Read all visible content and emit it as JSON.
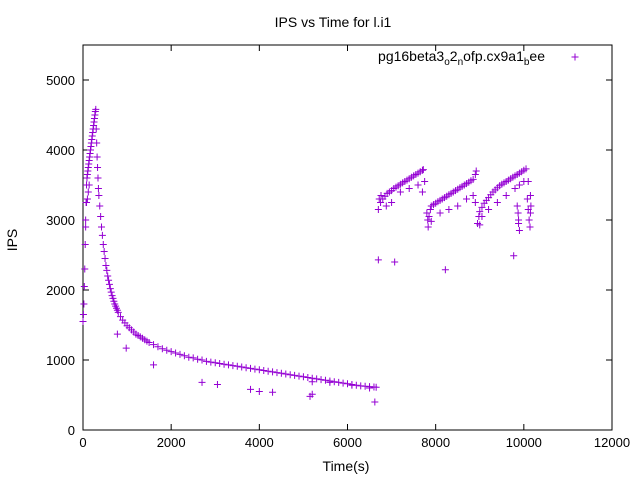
{
  "chart_data": {
    "type": "scatter",
    "title": "IPS vs Time for l.i1",
    "xlabel": "Time(s)",
    "ylabel": "IPS",
    "xlim": [
      0,
      12000
    ],
    "ylim": [
      0,
      5500
    ],
    "xticks": [
      "0",
      "2000",
      "4000",
      "6000",
      "8000",
      "10000",
      "12000"
    ],
    "xtick_values": [
      0,
      2000,
      4000,
      6000,
      8000,
      10000,
      12000
    ],
    "yticks": [
      "0",
      "1000",
      "2000",
      "3000",
      "4000",
      "5000"
    ],
    "ytick_values": [
      0,
      1000,
      2000,
      3000,
      4000,
      5000
    ],
    "grid": false,
    "legend_position": "top-right",
    "marker": "plus",
    "series": [
      {
        "name": "pg16beta3o2nofp.cx9a1bee",
        "name_parts": [
          "pg16beta3",
          "o",
          "2",
          "n",
          "ofp.cx9a1",
          "b",
          "ee"
        ],
        "color": "#9400d3",
        "points": [
          [
            0,
            1550
          ],
          [
            10,
            1650
          ],
          [
            20,
            1800
          ],
          [
            30,
            2050
          ],
          [
            40,
            2300
          ],
          [
            50,
            2650
          ],
          [
            60,
            3000
          ],
          [
            70,
            3250
          ],
          [
            80,
            3500
          ],
          [
            90,
            3600
          ],
          [
            100,
            3650
          ],
          [
            110,
            3700
          ],
          [
            120,
            3750
          ],
          [
            130,
            3800
          ],
          [
            140,
            3850
          ],
          [
            150,
            3900
          ],
          [
            160,
            3950
          ],
          [
            170,
            4000
          ],
          [
            180,
            4050
          ],
          [
            190,
            4100
          ],
          [
            200,
            4150
          ],
          [
            210,
            4200
          ],
          [
            220,
            4250
          ],
          [
            230,
            4300
          ],
          [
            240,
            4350
          ],
          [
            250,
            4400
          ],
          [
            260,
            4450
          ],
          [
            270,
            4500
          ],
          [
            280,
            4550
          ],
          [
            290,
            4580
          ],
          [
            60,
            2900
          ],
          [
            80,
            3250
          ],
          [
            100,
            3300
          ],
          [
            120,
            3400
          ],
          [
            140,
            3500
          ],
          [
            300,
            4300
          ],
          [
            310,
            4100
          ],
          [
            320,
            3900
          ],
          [
            330,
            3750
          ],
          [
            340,
            3600
          ],
          [
            350,
            3450
          ],
          [
            360,
            3350
          ],
          [
            380,
            3200
          ],
          [
            400,
            3050
          ],
          [
            420,
            2900
          ],
          [
            440,
            2780
          ],
          [
            460,
            2650
          ],
          [
            480,
            2550
          ],
          [
            500,
            2450
          ],
          [
            520,
            2350
          ],
          [
            540,
            2280
          ],
          [
            560,
            2200
          ],
          [
            580,
            2140
          ],
          [
            600,
            2080
          ],
          [
            620,
            2020
          ],
          [
            640,
            1970
          ],
          [
            660,
            1920
          ],
          [
            680,
            1880
          ],
          [
            700,
            1840
          ],
          [
            720,
            1800
          ],
          [
            740,
            1770
          ],
          [
            760,
            1740
          ],
          [
            780,
            1710
          ],
          [
            800,
            1680
          ],
          [
            850,
            1620
          ],
          [
            900,
            1570
          ],
          [
            950,
            1530
          ],
          [
            1000,
            1490
          ],
          [
            1050,
            1460
          ],
          [
            1100,
            1430
          ],
          [
            1150,
            1400
          ],
          [
            1200,
            1370
          ],
          [
            1250,
            1350
          ],
          [
            1300,
            1330
          ],
          [
            1350,
            1310
          ],
          [
            1400,
            1290
          ],
          [
            1450,
            1270
          ],
          [
            1500,
            1250
          ],
          [
            1600,
            1220
          ],
          [
            1700,
            1190
          ],
          [
            1800,
            1160
          ],
          [
            1900,
            1140
          ],
          [
            2000,
            1120
          ],
          [
            2100,
            1100
          ],
          [
            2200,
            1080
          ],
          [
            2300,
            1060
          ],
          [
            2400,
            1040
          ],
          [
            2500,
            1030
          ],
          [
            2600,
            1010
          ],
          [
            2700,
            1000
          ],
          [
            2800,
            980
          ],
          [
            2900,
            970
          ],
          [
            3000,
            960
          ],
          [
            3100,
            950
          ],
          [
            3200,
            940
          ],
          [
            3300,
            930
          ],
          [
            3400,
            920
          ],
          [
            3500,
            910
          ],
          [
            3600,
            900
          ],
          [
            3700,
            890
          ],
          [
            3800,
            880
          ],
          [
            3900,
            870
          ],
          [
            4000,
            860
          ],
          [
            4100,
            850
          ],
          [
            4200,
            840
          ],
          [
            4300,
            830
          ],
          [
            4400,
            820
          ],
          [
            4500,
            810
          ],
          [
            4600,
            800
          ],
          [
            4700,
            790
          ],
          [
            4800,
            780
          ],
          [
            4900,
            770
          ],
          [
            5000,
            760
          ],
          [
            5100,
            750
          ],
          [
            5200,
            740
          ],
          [
            5300,
            730
          ],
          [
            5400,
            720
          ],
          [
            5500,
            710
          ],
          [
            5600,
            700
          ],
          [
            5700,
            690
          ],
          [
            5800,
            680
          ],
          [
            5900,
            670
          ],
          [
            6000,
            660
          ],
          [
            6100,
            650
          ],
          [
            6200,
            640
          ],
          [
            6300,
            630
          ],
          [
            6400,
            625
          ],
          [
            6500,
            620
          ],
          [
            6600,
            615
          ],
          [
            6650,
            610
          ],
          [
            5200,
            690
          ],
          [
            5600,
            680
          ],
          [
            6100,
            640
          ],
          [
            6500,
            600
          ],
          [
            780,
            1370
          ],
          [
            980,
            1170
          ],
          [
            1600,
            930
          ],
          [
            2700,
            680
          ],
          [
            3050,
            650
          ],
          [
            3800,
            580
          ],
          [
            4000,
            550
          ],
          [
            4300,
            540
          ],
          [
            5150,
            480
          ],
          [
            5200,
            510
          ],
          [
            6620,
            400
          ],
          [
            6700,
            2430
          ],
          [
            7070,
            2400
          ],
          [
            8220,
            2290
          ],
          [
            9770,
            2490
          ],
          [
            6700,
            3150
          ],
          [
            6750,
            3250
          ],
          [
            6800,
            3300
          ],
          [
            6850,
            3340
          ],
          [
            6900,
            3380
          ],
          [
            6950,
            3400
          ],
          [
            7000,
            3420
          ],
          [
            7050,
            3450
          ],
          [
            7100,
            3470
          ],
          [
            7150,
            3490
          ],
          [
            7200,
            3510
          ],
          [
            7250,
            3530
          ],
          [
            7300,
            3550
          ],
          [
            7350,
            3570
          ],
          [
            7400,
            3590
          ],
          [
            7450,
            3610
          ],
          [
            7500,
            3630
          ],
          [
            7550,
            3650
          ],
          [
            7600,
            3670
          ],
          [
            7650,
            3690
          ],
          [
            7700,
            3710
          ],
          [
            7720,
            3720
          ],
          [
            6720,
            3300
          ],
          [
            6760,
            3350
          ],
          [
            6880,
            3200
          ],
          [
            7000,
            3250
          ],
          [
            7200,
            3400
          ],
          [
            7400,
            3450
          ],
          [
            7600,
            3500
          ],
          [
            7700,
            3400
          ],
          [
            7750,
            3550
          ],
          [
            7800,
            3100
          ],
          [
            7820,
            3000
          ],
          [
            7850,
            3050
          ],
          [
            7880,
            3150
          ],
          [
            7900,
            3200
          ],
          [
            7950,
            3220
          ],
          [
            8000,
            3240
          ],
          [
            8050,
            3260
          ],
          [
            8100,
            3280
          ],
          [
            8150,
            3300
          ],
          [
            8200,
            3320
          ],
          [
            8250,
            3340
          ],
          [
            8300,
            3360
          ],
          [
            8350,
            3380
          ],
          [
            8400,
            3400
          ],
          [
            8450,
            3420
          ],
          [
            8500,
            3440
          ],
          [
            8550,
            3460
          ],
          [
            8600,
            3480
          ],
          [
            8650,
            3500
          ],
          [
            8700,
            3520
          ],
          [
            8750,
            3540
          ],
          [
            8800,
            3560
          ],
          [
            8850,
            3580
          ],
          [
            8900,
            3650
          ],
          [
            8920,
            3700
          ],
          [
            7830,
            2900
          ],
          [
            7900,
            2980
          ],
          [
            8100,
            3100
          ],
          [
            8300,
            3150
          ],
          [
            8500,
            3200
          ],
          [
            8700,
            3300
          ],
          [
            8850,
            3350
          ],
          [
            8900,
            3250
          ],
          [
            8950,
            2950
          ],
          [
            8980,
            3050
          ],
          [
            9000,
            3120
          ],
          [
            9050,
            3180
          ],
          [
            9100,
            3240
          ],
          [
            9150,
            3280
          ],
          [
            9200,
            3320
          ],
          [
            9250,
            3360
          ],
          [
            9300,
            3400
          ],
          [
            9350,
            3430
          ],
          [
            9400,
            3460
          ],
          [
            9450,
            3490
          ],
          [
            9500,
            3510
          ],
          [
            9550,
            3530
          ],
          [
            9600,
            3550
          ],
          [
            9650,
            3570
          ],
          [
            9700,
            3590
          ],
          [
            9750,
            3610
          ],
          [
            9800,
            3630
          ],
          [
            9850,
            3650
          ],
          [
            9900,
            3670
          ],
          [
            9950,
            3690
          ],
          [
            10000,
            3710
          ],
          [
            10050,
            3730
          ],
          [
            9000,
            2930
          ],
          [
            9050,
            3050
          ],
          [
            9200,
            3150
          ],
          [
            9400,
            3250
          ],
          [
            9600,
            3350
          ],
          [
            9800,
            3450
          ],
          [
            9900,
            3500
          ],
          [
            10000,
            3550
          ],
          [
            10080,
            3300
          ],
          [
            10100,
            3150
          ],
          [
            10120,
            3000
          ],
          [
            10140,
            2900
          ],
          [
            10150,
            3100
          ],
          [
            10160,
            3200
          ],
          [
            9850,
            3200
          ],
          [
            9870,
            3100
          ],
          [
            9880,
            2950
          ],
          [
            9900,
            2850
          ],
          [
            9880,
            3000
          ],
          [
            10100,
            3550
          ],
          [
            10150,
            3350
          ]
        ]
      }
    ]
  }
}
